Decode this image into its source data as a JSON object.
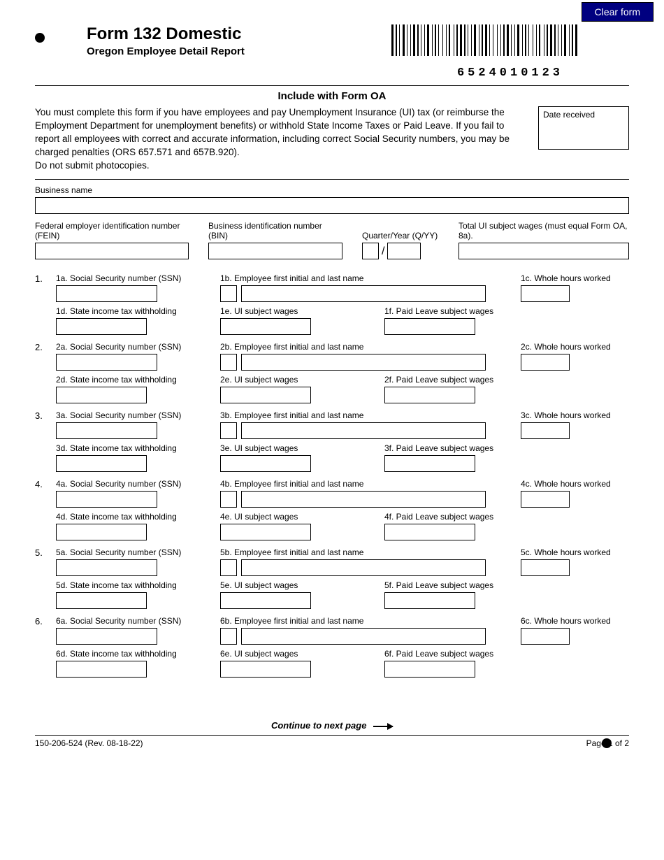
{
  "clear_button": "Clear form",
  "header": {
    "title": "Form 132 Domestic",
    "subtitle": "Oregon Employee Detail Report",
    "barcode_number": "6524010123"
  },
  "section_title": "Include with Form OA",
  "intro_text": "You must complete this form if you have employees and pay Unemployment Insurance (UI) tax (or reimburse the Employment Department for unemployment benefits) or withhold State Income Taxes or Paid Leave. If you fail to report all employees with correct and accurate information, including correct Social Security numbers, you may be charged penalties  (ORS 657.571 and 657B.920).",
  "intro_text2": "Do not submit photocopies.",
  "date_received_label": "Date received",
  "fields": {
    "business_name": "Business name",
    "fein": "Federal employer identification number (FEIN)",
    "bin": "Business identification number (BIN)",
    "quarter_year": "Quarter/Year (Q/YY)",
    "total_ui": "Total UI subject wages (must equal Form OA, 8a)."
  },
  "employee_labels": {
    "ssn": "Social Security number (SSN)",
    "name": "Employee first initial and last name",
    "hours": "Whole hours worked",
    "withholding": "State income tax withholding",
    "ui_wages": "UI subject wages",
    "paid_leave": "Paid Leave subject wages"
  },
  "employees": [
    "1",
    "2",
    "3",
    "4",
    "5",
    "6"
  ],
  "continue_text": "Continue to next page",
  "footer": {
    "left": "150-206-524  (Rev. 08-18-22)",
    "right": "Page 1 of 2"
  },
  "colors": {
    "button_bg": "#000080",
    "border": "#000000"
  }
}
